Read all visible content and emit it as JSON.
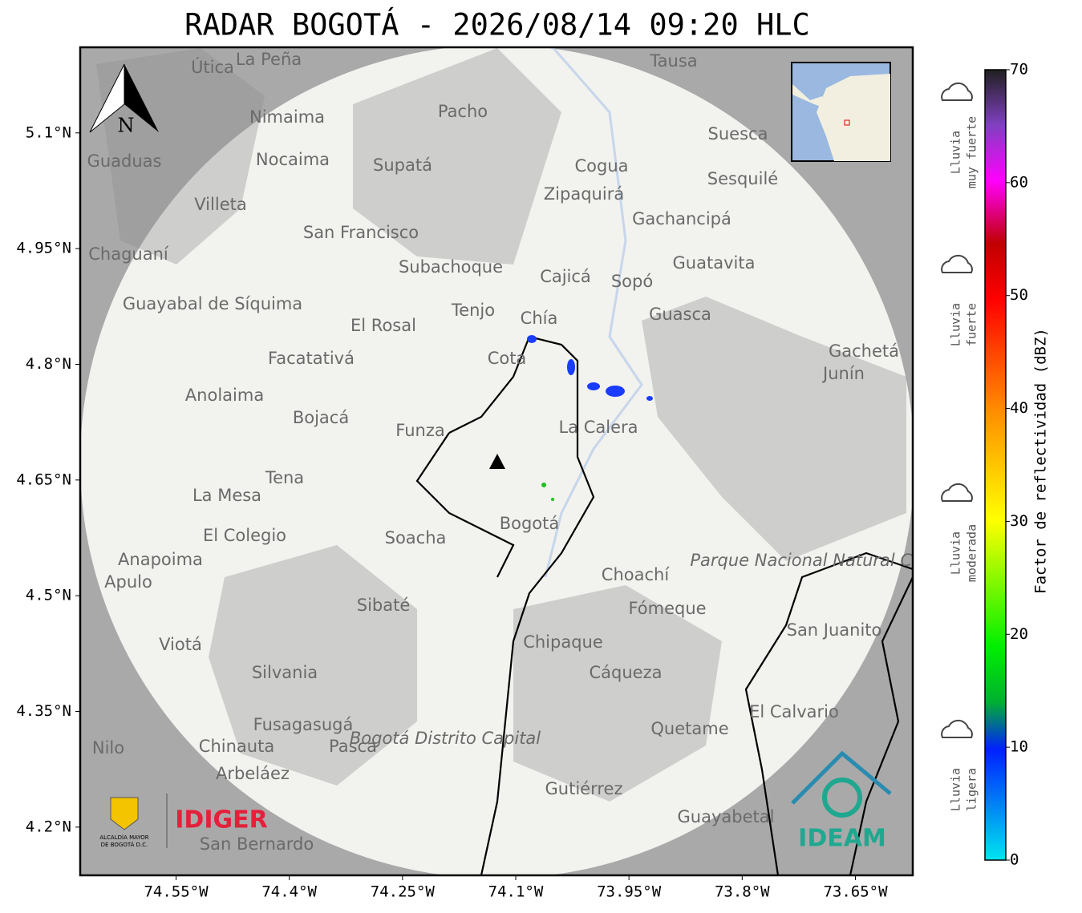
{
  "title": "RADAR BOGOTÁ - 2026/08/14 09:20 HLC",
  "map": {
    "xlim": [
      -74.677,
      -73.574
    ],
    "ylim": [
      4.1375,
      5.211
    ],
    "xticks": [
      {
        "value": -74.55,
        "label": "74.55°W"
      },
      {
        "value": -74.4,
        "label": "74.4°W"
      },
      {
        "value": -74.25,
        "label": "74.25°W"
      },
      {
        "value": -74.1,
        "label": "74.1°W"
      },
      {
        "value": -73.95,
        "label": "73.95°W"
      },
      {
        "value": -73.8,
        "label": "73.8°W"
      },
      {
        "value": -73.65,
        "label": "73.65°W"
      }
    ],
    "yticks": [
      {
        "value": 5.1,
        "label": "5.1°N"
      },
      {
        "value": 4.95,
        "label": "4.95°N"
      },
      {
        "value": 4.8,
        "label": "4.8°N"
      },
      {
        "value": 4.65,
        "label": "4.65°N"
      },
      {
        "value": 4.5,
        "label": "4.5°N"
      },
      {
        "value": 4.35,
        "label": "4.35°N"
      },
      {
        "value": 4.2,
        "label": "4.2°N"
      }
    ],
    "grid": true,
    "north": "N",
    "places": [
      "La Peña",
      "Útica",
      "Tausa",
      "Pacho",
      "Nimaima",
      "Guaduas",
      "Nocaima",
      "Supatá",
      "Suesca",
      "Cogua",
      "Sesquilé",
      "Zipaquirá",
      "Villeta",
      "San Francisco",
      "Gachancipá",
      "Chaguaní",
      "Guatavita",
      "Subachoque",
      "Cajicá",
      "Sopó",
      "Guayabal de Síquima",
      "Tenjo",
      "Chía",
      "Guasca",
      "El Rosal",
      "Facatativá",
      "Cota",
      "Gachetá",
      "Junín",
      "Anolaima",
      "Bojacá",
      "Funza",
      "La Calera",
      "Tena",
      "La Mesa",
      "El Colegio",
      "Soacha",
      "Bogotá",
      "Parque Nacional Natural Chingaza",
      "Anapoima",
      "Apulo",
      "Choachí",
      "Sibaté",
      "Fómeque",
      "San Juanito",
      "Chipaque",
      "Viotá",
      "Silvania",
      "Cáqueza",
      "El Calvario",
      "Fusagasugá",
      "Bogotá Distrito Capital",
      "Quetame",
      "Pasca",
      "Chinauta",
      "Nilo",
      "Arbeláez",
      "Gutiérrez",
      "Guayabetal",
      "San Bernardo"
    ]
  },
  "logos": {
    "alcaldia": [
      "ALCALDÍA MAYOR",
      "DE BOGOTÁ D.C."
    ],
    "idiger": "IDIGER",
    "ideam": "IDEAM"
  },
  "colorbar": {
    "label": "Factor de reflectividad (dBZ)",
    "lim": [
      0,
      70
    ],
    "ticks": [
      0,
      10,
      20,
      30,
      40,
      50,
      60,
      70
    ]
  },
  "legend": [
    [
      "Lluvia",
      "muy fuerte"
    ],
    [
      "Lluvia",
      "fuerte"
    ],
    [
      "Lluvia",
      "moderada"
    ],
    [
      "Lluvia",
      "ligera"
    ]
  ]
}
